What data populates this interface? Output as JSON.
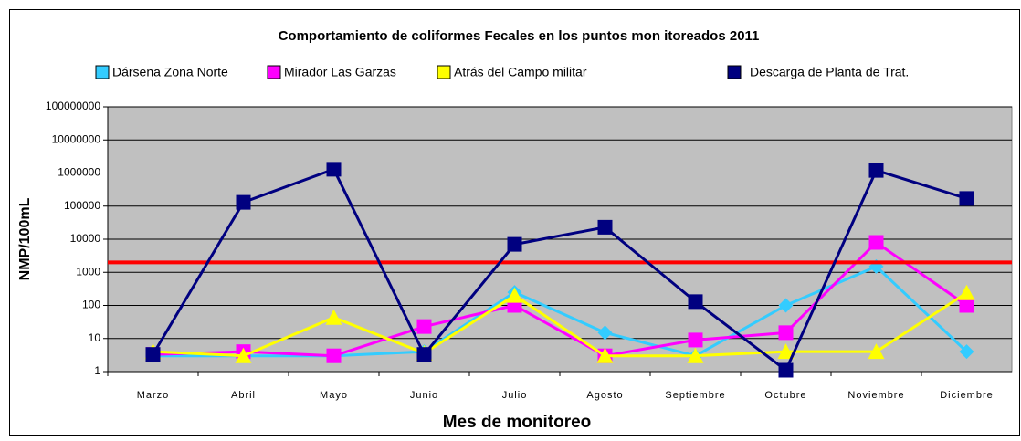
{
  "chart_data": {
    "type": "line",
    "title": "Comportamiento de coliformes Fecales en los puntos mon itoreados 2011",
    "x_label": "Mes de monitoreo",
    "y_label": "NMP/100mL",
    "categories": [
      "Marzo",
      "Abril",
      "Mayo",
      "Junio",
      "Julio",
      "Agosto",
      "Septiembre",
      "Octubre",
      "Noviembre",
      "Diciembre"
    ],
    "series": [
      {
        "name": "Dársena Zona Norte",
        "color": "#33ccff",
        "marker": "diamond",
        "values": [
          3,
          3,
          3,
          4,
          250,
          15,
          3,
          100,
          1500,
          4
        ]
      },
      {
        "name": "Mirador Las Garzas",
        "color": "#ff00ff",
        "marker": "square",
        "values": [
          3.3,
          4,
          3,
          23,
          100,
          3,
          9,
          15,
          8000,
          100
        ]
      },
      {
        "name": "Atrás del Campo militar",
        "color": "#ffff00",
        "marker": "triangle",
        "values": [
          4,
          3,
          43,
          3.6,
          200,
          3,
          3,
          4,
          4,
          240
        ]
      },
      {
        "name": "Descarga de Planta de Trat.",
        "color": "#000080",
        "marker": "square",
        "values": [
          3.3,
          130000,
          1300000,
          3.3,
          7000,
          23000,
          130,
          1.1,
          1200000,
          170000
        ]
      }
    ],
    "reference_line": {
      "value": 2000,
      "color": "#ff0000"
    },
    "ylim": [
      1,
      100000000
    ],
    "yticks": [
      1,
      10,
      100,
      1000,
      10000,
      100000,
      1000000,
      10000000,
      100000000
    ],
    "log_scale": true,
    "grid": true,
    "plot_background": "#c0c0c0",
    "legend_position": "top"
  }
}
